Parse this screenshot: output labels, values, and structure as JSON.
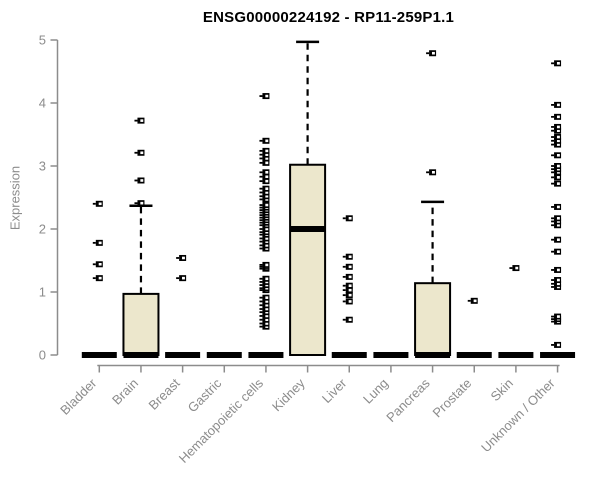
{
  "chart_data": {
    "type": "boxplot",
    "title": "ENSG00000224192 - RP11-259P1.1",
    "ylabel": "Expression",
    "xlabel": "",
    "ylim": [
      0,
      5
    ],
    "yticks": [
      0,
      1,
      2,
      3,
      4,
      5
    ],
    "grid": false,
    "legend": false,
    "colors": {
      "box_fill": "#ECE7CC",
      "box_stroke": "#000000",
      "axis": "#8C8C8C",
      "title": "#000000"
    },
    "categories": [
      "Bladder",
      "Brain",
      "Breast",
      "Gastric",
      "Hematopoietic cells",
      "Kidney",
      "Liver",
      "Lung",
      "Pancreas",
      "Prostate",
      "Skin",
      "Unknown / Other"
    ],
    "series": [
      {
        "name": "Bladder",
        "q1": 0,
        "median": 0,
        "q3": 0,
        "whisker_low": 0,
        "whisker_high": 0,
        "outliers": [
          1.22,
          1.44,
          1.78,
          2.4
        ]
      },
      {
        "name": "Brain",
        "q1": 0,
        "median": 0,
        "q3": 0.97,
        "whisker_low": 0,
        "whisker_high": 2.37,
        "outliers": [
          2.41,
          2.77,
          3.21,
          3.72
        ]
      },
      {
        "name": "Breast",
        "q1": 0,
        "median": 0,
        "q3": 0,
        "whisker_low": 0,
        "whisker_high": 0,
        "outliers": [
          1.22,
          1.54
        ]
      },
      {
        "name": "Gastric",
        "q1": 0,
        "median": 0,
        "q3": 0,
        "whisker_low": 0,
        "whisker_high": 0,
        "outliers": []
      },
      {
        "name": "Hematopoietic cells",
        "q1": 0,
        "median": 0,
        "q3": 0,
        "whisker_low": 0,
        "whisker_high": 0,
        "outliers": [
          0.45,
          0.5,
          0.56,
          0.62,
          0.68,
          0.73,
          0.79,
          0.85,
          0.91,
          1.03,
          1.06,
          1.11,
          1.16,
          1.21,
          1.37,
          1.4,
          1.43,
          1.69,
          1.74,
          1.8,
          1.85,
          1.91,
          1.95,
          2.0,
          2.06,
          2.1,
          2.14,
          2.18,
          2.22,
          2.26,
          2.3,
          2.34,
          2.38,
          2.47,
          2.52,
          2.58,
          2.64,
          2.76,
          2.83,
          2.9,
          3.05,
          3.12,
          3.18,
          3.24,
          3.4,
          4.11
        ]
      },
      {
        "name": "Kidney",
        "q1": 0,
        "median": 2.0,
        "q3": 3.02,
        "whisker_low": 0,
        "whisker_high": 4.97,
        "outliers": []
      },
      {
        "name": "Liver",
        "q1": 0,
        "median": 0,
        "q3": 0,
        "whisker_low": 0,
        "whisker_high": 0,
        "outliers": [
          0.56,
          0.85,
          0.95,
          1.03,
          1.1,
          1.24,
          1.4,
          1.56,
          2.17
        ]
      },
      {
        "name": "Lung",
        "q1": 0,
        "median": 0,
        "q3": 0,
        "whisker_low": 0,
        "whisker_high": 0,
        "outliers": []
      },
      {
        "name": "Pancreas",
        "q1": 0,
        "median": 0,
        "q3": 1.14,
        "whisker_low": 0,
        "whisker_high": 2.43,
        "outliers": [
          2.9,
          4.79
        ]
      },
      {
        "name": "Prostate",
        "q1": 0,
        "median": 0,
        "q3": 0,
        "whisker_low": 0,
        "whisker_high": 0,
        "outliers": [
          0.86
        ]
      },
      {
        "name": "Skin",
        "q1": 0,
        "median": 0,
        "q3": 0,
        "whisker_low": 0,
        "whisker_high": 0,
        "outliers": [
          1.38
        ]
      },
      {
        "name": "Unknown / Other",
        "q1": 0,
        "median": 0,
        "q3": 0,
        "whisker_low": 0,
        "whisker_high": 0,
        "outliers": [
          0.16,
          0.53,
          0.57,
          0.61,
          1.08,
          1.13,
          1.19,
          1.35,
          1.64,
          1.83,
          2.06,
          2.12,
          2.17,
          2.35,
          2.72,
          2.82,
          2.9,
          2.95,
          3.0,
          3.17,
          3.34,
          3.4,
          3.46,
          3.56,
          3.62,
          3.78,
          3.97,
          4.63
        ]
      }
    ]
  }
}
